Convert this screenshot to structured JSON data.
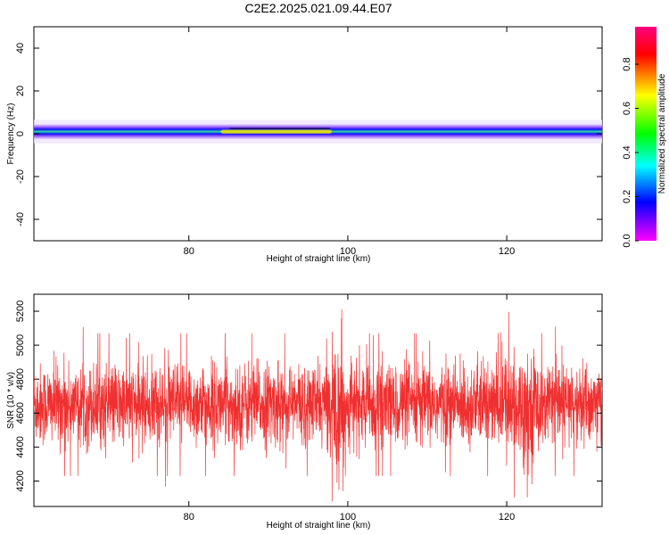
{
  "title": "C2E2.2025.021.09.44.E07",
  "chart_data": [
    {
      "type": "heatmap",
      "xlabel": "Height of straight line (km)",
      "ylabel": "Frequency (Hz)",
      "xlim": [
        60.5,
        132
      ],
      "ylim": [
        -50,
        50
      ],
      "xticks": [
        80,
        100,
        120
      ],
      "yticks": [
        -40,
        -20,
        0,
        20,
        40
      ],
      "colorbar": {
        "label": "Normalized spectral amplitude",
        "range": [
          0,
          0.97
        ],
        "ticks": [
          0.0,
          0.2,
          0.4,
          0.6,
          0.8
        ],
        "colormap": [
          "#ff00ff",
          "#0000ff",
          "#00ffff",
          "#00ff00",
          "#ffff00",
          "#ff0000",
          "#ff007f"
        ]
      },
      "band": {
        "center_hz": 1,
        "half_width_hz": 2.5,
        "max_region_km": [
          84,
          98
        ],
        "background_color": "#ffffff",
        "band_color": "#33e0a0",
        "peak_color": "#f2e000"
      }
    },
    {
      "type": "line",
      "xlabel": "Height of straight line (km)",
      "ylabel": "SNR (10 * v/v)",
      "xlim": [
        60.5,
        132
      ],
      "ylim": [
        4050,
        5300
      ],
      "xticks": [
        80,
        100,
        120
      ],
      "yticks": [
        4200,
        4400,
        4600,
        4800,
        5000,
        5200
      ],
      "series": [
        {
          "color": "#f03030",
          "x_start": 60.5,
          "x_end": 132,
          "points": 3000,
          "mean": 4650,
          "spread": 120,
          "min": 4080,
          "max": 5280
        }
      ]
    }
  ]
}
